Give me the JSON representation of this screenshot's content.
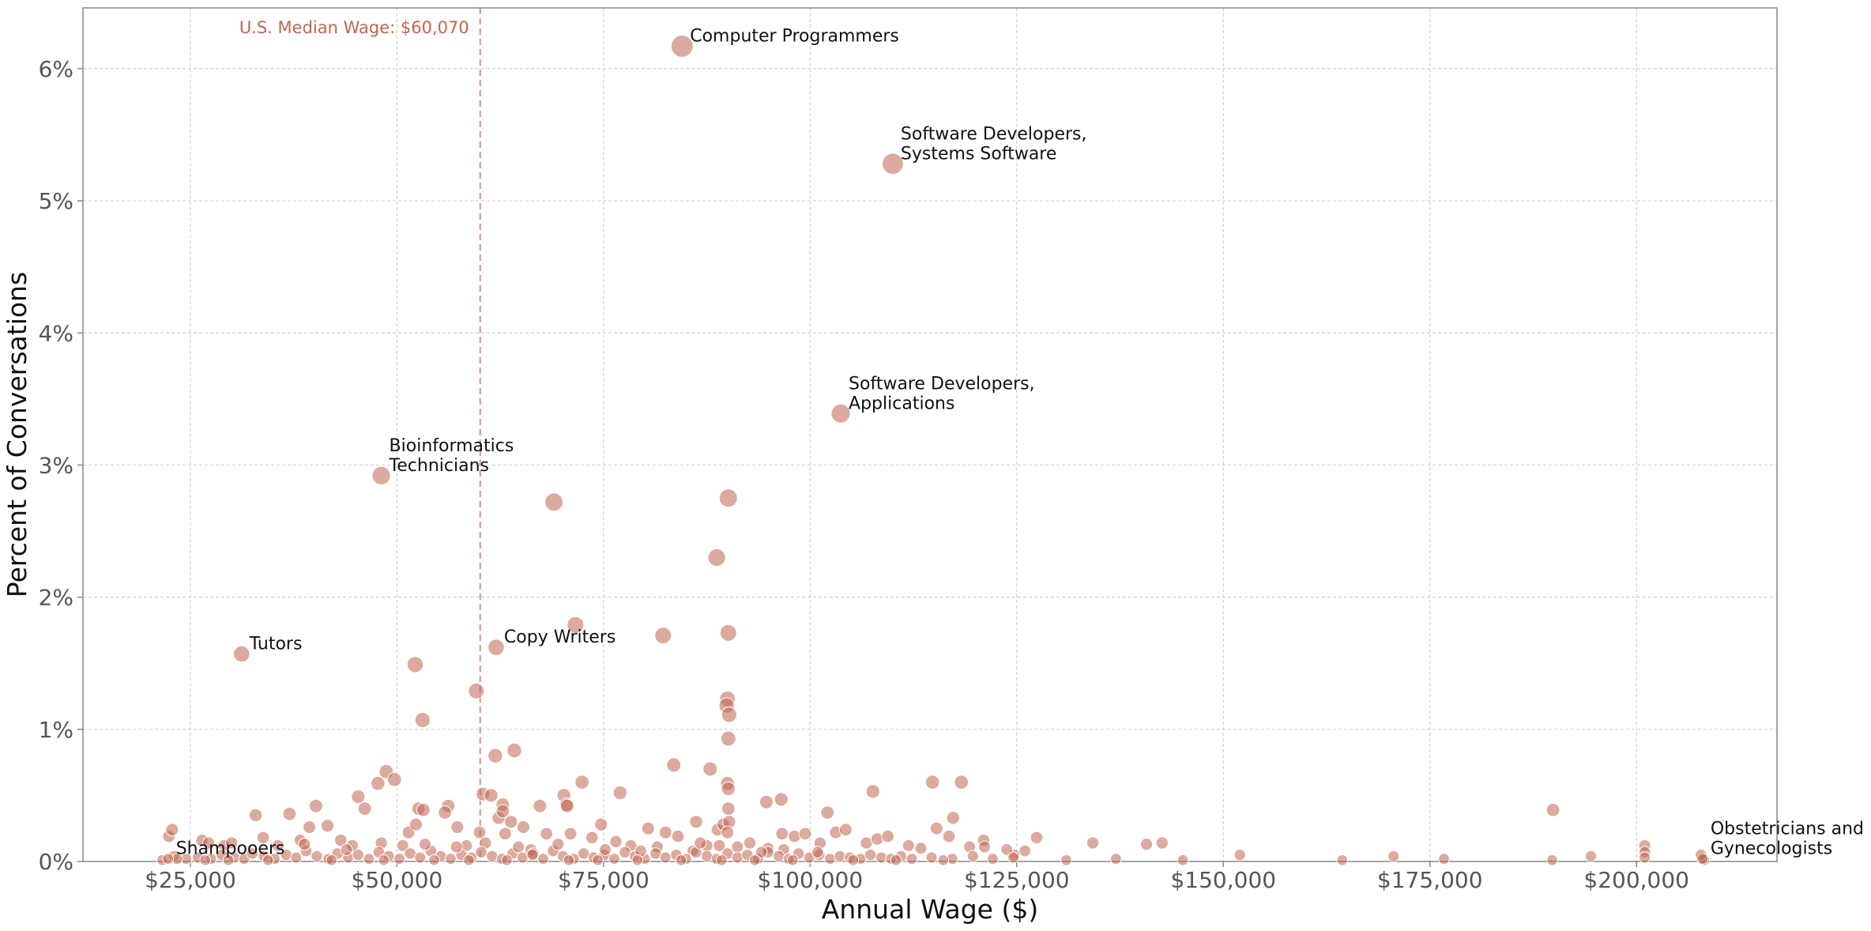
{
  "chart_data": {
    "type": "scatter",
    "title": "",
    "xlabel": "Annual Wage ($)",
    "ylabel": "Percent of Conversations",
    "xlim": [
      12000,
      217000
    ],
    "ylim": [
      0,
      6.46
    ],
    "grid": true,
    "x_ticks": [
      {
        "value": 25000,
        "label": "$25,000"
      },
      {
        "value": 50000,
        "label": "$50,000"
      },
      {
        "value": 75000,
        "label": "$75,000"
      },
      {
        "value": 100000,
        "label": "$100,000"
      },
      {
        "value": 125000,
        "label": "$125,000"
      },
      {
        "value": 150000,
        "label": "$150,000"
      },
      {
        "value": 175000,
        "label": "$175,000"
      },
      {
        "value": 200000,
        "label": "$200,000"
      }
    ],
    "y_ticks": [
      {
        "value": 0,
        "label": "0%"
      },
      {
        "value": 1,
        "label": "1%"
      },
      {
        "value": 2,
        "label": "2%"
      },
      {
        "value": 3,
        "label": "3%"
      },
      {
        "value": 4,
        "label": "4%"
      },
      {
        "value": 5,
        "label": "5%"
      },
      {
        "value": 6,
        "label": "6%"
      }
    ],
    "median_line": {
      "x": 60070,
      "label": "U.S. Median Wage: $60,070",
      "color": "#c0654e"
    },
    "point_color": "#c0654e",
    "annotated_points": [
      {
        "x": 84500,
        "y": 6.17,
        "lines": [
          "Computer Programmers"
        ]
      },
      {
        "x": 110000,
        "y": 5.28,
        "lines": [
          "Software Developers,",
          "Systems Software"
        ]
      },
      {
        "x": 103700,
        "y": 3.39,
        "lines": [
          "Software Developers,",
          "Applications"
        ]
      },
      {
        "x": 48100,
        "y": 2.92,
        "lines": [
          "Bioinformatics",
          "Technicians"
        ]
      },
      {
        "x": 31200,
        "y": 1.57,
        "lines": [
          "Tutors"
        ]
      },
      {
        "x": 62000,
        "y": 1.62,
        "lines": [
          "Copy Writers"
        ]
      },
      {
        "x": 22300,
        "y": 0.02,
        "lines": [
          "Shampooers"
        ]
      },
      {
        "x": 208000,
        "y": 0.02,
        "lines": [
          "Obstetricians and",
          "Gynecologists"
        ]
      }
    ],
    "points": [
      [
        69000,
        2.72
      ],
      [
        90100,
        2.75
      ],
      [
        88700,
        2.3
      ],
      [
        71600,
        1.79
      ],
      [
        82200,
        1.71
      ],
      [
        90100,
        1.73
      ],
      [
        52200,
        1.49
      ],
      [
        59600,
        1.29
      ],
      [
        53100,
        1.07
      ],
      [
        90000,
        1.23
      ],
      [
        89900,
        1.18
      ],
      [
        90200,
        1.11
      ],
      [
        90100,
        0.93
      ],
      [
        64200,
        0.84
      ],
      [
        61900,
        0.8
      ],
      [
        83500,
        0.73
      ],
      [
        87900,
        0.7
      ],
      [
        48700,
        0.68
      ],
      [
        49700,
        0.62
      ],
      [
        47700,
        0.59
      ],
      [
        72400,
        0.6
      ],
      [
        90000,
        0.59
      ],
      [
        90100,
        0.55
      ],
      [
        114800,
        0.6
      ],
      [
        118300,
        0.6
      ],
      [
        60400,
        0.51
      ],
      [
        61400,
        0.5
      ],
      [
        77000,
        0.52
      ],
      [
        107600,
        0.53
      ],
      [
        96500,
        0.47
      ],
      [
        94700,
        0.45
      ],
      [
        70200,
        0.5
      ],
      [
        67300,
        0.42
      ],
      [
        45300,
        0.49
      ],
      [
        62800,
        0.43
      ],
      [
        40200,
        0.42
      ],
      [
        56200,
        0.42
      ],
      [
        52600,
        0.4
      ],
      [
        53200,
        0.39
      ],
      [
        37000,
        0.36
      ],
      [
        55800,
        0.37
      ],
      [
        46100,
        0.4
      ],
      [
        32900,
        0.35
      ],
      [
        63800,
        0.3
      ],
      [
        74700,
        0.28
      ],
      [
        86200,
        0.3
      ],
      [
        102100,
        0.37
      ],
      [
        117300,
        0.33
      ],
      [
        121000,
        0.16
      ],
      [
        127400,
        0.18
      ],
      [
        134200,
        0.14
      ],
      [
        140700,
        0.13
      ],
      [
        142600,
        0.14
      ],
      [
        152000,
        0.05
      ],
      [
        170600,
        0.04
      ],
      [
        176700,
        0.02
      ],
      [
        189900,
        0.39
      ],
      [
        194500,
        0.04
      ],
      [
        201000,
        0.12
      ],
      [
        201000,
        0.07
      ],
      [
        201000,
        0.03
      ],
      [
        189800,
        0.01
      ],
      [
        137000,
        0.02
      ],
      [
        124700,
        0.05
      ],
      [
        126000,
        0.08
      ],
      [
        22400,
        0.19
      ],
      [
        22800,
        0.24
      ],
      [
        26400,
        0.16
      ],
      [
        27200,
        0.14
      ],
      [
        29100,
        0.12
      ],
      [
        30000,
        0.14
      ],
      [
        33800,
        0.18
      ],
      [
        35600,
        0.12
      ],
      [
        38300,
        0.16
      ],
      [
        39400,
        0.26
      ],
      [
        41600,
        0.27
      ],
      [
        43200,
        0.16
      ],
      [
        44600,
        0.12
      ],
      [
        48100,
        0.14
      ],
      [
        50700,
        0.12
      ],
      [
        51400,
        0.22
      ],
      [
        52300,
        0.28
      ],
      [
        57300,
        0.26
      ],
      [
        58400,
        0.12
      ],
      [
        60700,
        0.14
      ],
      [
        62300,
        0.33
      ],
      [
        62800,
        0.38
      ],
      [
        63100,
        0.21
      ],
      [
        65300,
        0.26
      ],
      [
        66200,
        0.09
      ],
      [
        68100,
        0.21
      ],
      [
        70500,
        0.43
      ],
      [
        70600,
        0.42
      ],
      [
        71000,
        0.21
      ],
      [
        73600,
        0.18
      ],
      [
        76500,
        0.15
      ],
      [
        78300,
        0.12
      ],
      [
        80400,
        0.25
      ],
      [
        81500,
        0.11
      ],
      [
        82500,
        0.22
      ],
      [
        84000,
        0.19
      ],
      [
        85800,
        0.08
      ],
      [
        87500,
        0.12
      ],
      [
        88800,
        0.24
      ],
      [
        89500,
        0.28
      ],
      [
        90100,
        0.4
      ],
      [
        90200,
        0.3
      ],
      [
        90000,
        0.22
      ],
      [
        91200,
        0.11
      ],
      [
        92700,
        0.14
      ],
      [
        94900,
        0.1
      ],
      [
        96800,
        0.09
      ],
      [
        98100,
        0.19
      ],
      [
        99400,
        0.21
      ],
      [
        101200,
        0.14
      ],
      [
        103100,
        0.22
      ],
      [
        104300,
        0.24
      ],
      [
        106800,
        0.14
      ],
      [
        108100,
        0.17
      ],
      [
        109400,
        0.19
      ],
      [
        111900,
        0.12
      ],
      [
        113400,
        0.1
      ],
      [
        115300,
        0.25
      ],
      [
        116800,
        0.19
      ],
      [
        119300,
        0.11
      ],
      [
        121100,
        0.11
      ],
      [
        123800,
        0.09
      ],
      [
        96600,
        0.21
      ],
      [
        89000,
        0.12
      ],
      [
        66500,
        0.06
      ],
      [
        24500,
        0.02
      ],
      [
        25900,
        0.03
      ],
      [
        27500,
        0.02
      ],
      [
        28800,
        0.05
      ],
      [
        30300,
        0.03
      ],
      [
        31500,
        0.02
      ],
      [
        32500,
        0.06
      ],
      [
        33900,
        0.04
      ],
      [
        35200,
        0.02
      ],
      [
        36600,
        0.05
      ],
      [
        37800,
        0.03
      ],
      [
        39000,
        0.08
      ],
      [
        40300,
        0.04
      ],
      [
        41700,
        0.02
      ],
      [
        42800,
        0.06
      ],
      [
        44100,
        0.03
      ],
      [
        45300,
        0.05
      ],
      [
        46600,
        0.02
      ],
      [
        47800,
        0.07
      ],
      [
        49000,
        0.04
      ],
      [
        50300,
        0.02
      ],
      [
        51600,
        0.06
      ],
      [
        52800,
        0.03
      ],
      [
        54100,
        0.08
      ],
      [
        55300,
        0.04
      ],
      [
        56500,
        0.02
      ],
      [
        57800,
        0.05
      ],
      [
        59000,
        0.03
      ],
      [
        60200,
        0.07
      ],
      [
        61500,
        0.04
      ],
      [
        62700,
        0.02
      ],
      [
        64000,
        0.06
      ],
      [
        65200,
        0.03
      ],
      [
        66400,
        0.05
      ],
      [
        67700,
        0.02
      ],
      [
        68900,
        0.08
      ],
      [
        70100,
        0.04
      ],
      [
        71400,
        0.02
      ],
      [
        72600,
        0.06
      ],
      [
        73800,
        0.03
      ],
      [
        75100,
        0.05
      ],
      [
        76300,
        0.02
      ],
      [
        77600,
        0.07
      ],
      [
        78800,
        0.04
      ],
      [
        80000,
        0.02
      ],
      [
        81300,
        0.06
      ],
      [
        82500,
        0.03
      ],
      [
        83800,
        0.05
      ],
      [
        85000,
        0.02
      ],
      [
        86200,
        0.07
      ],
      [
        87500,
        0.04
      ],
      [
        88700,
        0.02
      ],
      [
        90000,
        0.06
      ],
      [
        91200,
        0.03
      ],
      [
        92400,
        0.05
      ],
      [
        93700,
        0.02
      ],
      [
        94900,
        0.07
      ],
      [
        96200,
        0.04
      ],
      [
        97400,
        0.02
      ],
      [
        98600,
        0.06
      ],
      [
        99900,
        0.03
      ],
      [
        101100,
        0.05
      ],
      [
        102400,
        0.02
      ],
      [
        103600,
        0.04
      ],
      [
        104800,
        0.03
      ],
      [
        106100,
        0.02
      ],
      [
        107300,
        0.05
      ],
      [
        108600,
        0.03
      ],
      [
        109800,
        0.02
      ],
      [
        111000,
        0.04
      ],
      [
        112300,
        0.02
      ],
      [
        114700,
        0.03
      ],
      [
        117200,
        0.02
      ],
      [
        119700,
        0.04
      ],
      [
        122100,
        0.02
      ],
      [
        124600,
        0.03
      ],
      [
        38800,
        0.13
      ],
      [
        43900,
        0.09
      ],
      [
        53400,
        0.13
      ],
      [
        57200,
        0.11
      ],
      [
        60000,
        0.22
      ],
      [
        64700,
        0.11
      ],
      [
        69500,
        0.13
      ],
      [
        75200,
        0.09
      ],
      [
        79500,
        0.08
      ],
      [
        86700,
        0.14
      ],
      [
        94100,
        0.07
      ],
      [
        100900,
        0.07
      ],
      [
        23000,
        0.04
      ],
      [
        23400,
        0.02
      ],
      [
        21600,
        0.01
      ],
      [
        26800,
        0.01
      ],
      [
        29600,
        0.01
      ],
      [
        34400,
        0.01
      ],
      [
        42100,
        0.01
      ],
      [
        48400,
        0.01
      ],
      [
        54500,
        0.01
      ],
      [
        58700,
        0.01
      ],
      [
        63300,
        0.01
      ],
      [
        70800,
        0.01
      ],
      [
        74300,
        0.01
      ],
      [
        79100,
        0.01
      ],
      [
        84400,
        0.01
      ],
      [
        89300,
        0.01
      ],
      [
        93300,
        0.01
      ],
      [
        97900,
        0.01
      ],
      [
        105200,
        0.01
      ],
      [
        110400,
        0.01
      ],
      [
        116100,
        0.01
      ],
      [
        131000,
        0.01
      ],
      [
        145100,
        0.01
      ],
      [
        164400,
        0.01
      ],
      [
        207900,
        0.03
      ],
      [
        208200,
        0.01
      ],
      [
        207800,
        0.05
      ]
    ]
  }
}
